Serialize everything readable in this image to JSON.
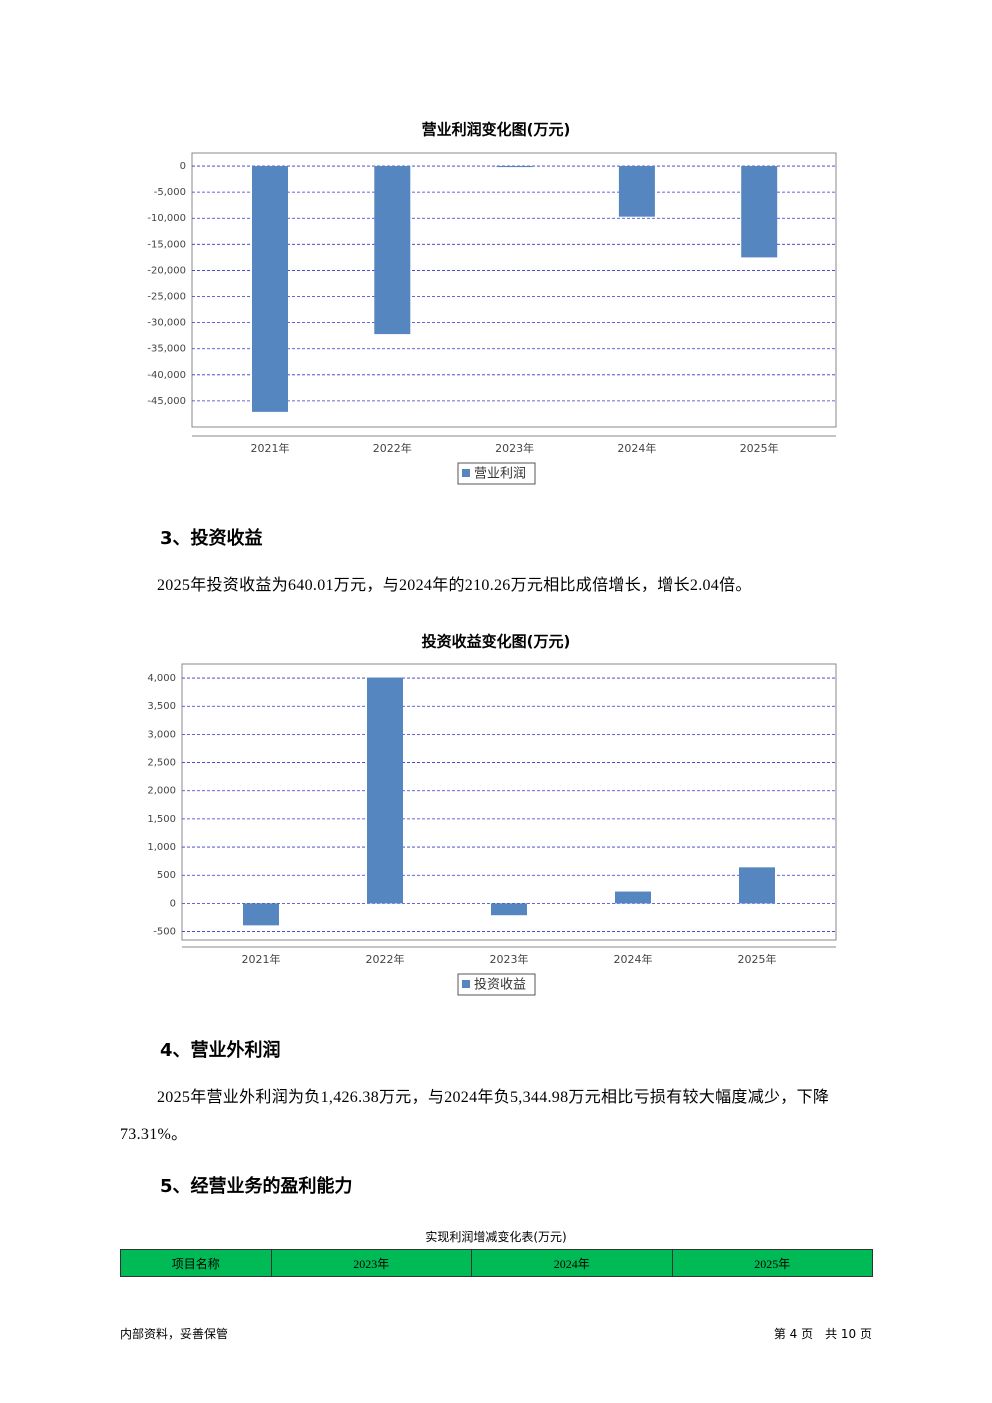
{
  "chart_data": [
    {
      "type": "bar",
      "title": "营业利润变化图(万元)",
      "categories": [
        "2021年",
        "2022年",
        "2023年",
        "2024年",
        "2025年"
      ],
      "series": [
        {
          "name": "营业利润",
          "color": "#5686bf",
          "values": [
            -47100,
            -32200,
            -200,
            -9700,
            -17500
          ]
        }
      ],
      "ylim": [
        -50000,
        2500
      ],
      "yticks": [
        0,
        {
          "value": -5000,
          "label": "-5,000"
        },
        {
          "value": -10000,
          "label": "-10,000"
        },
        {
          "value": -15000,
          "label": "-15,000"
        },
        {
          "value": -20000,
          "label": "-20,000"
        },
        {
          "value": -25000,
          "label": "-25,000"
        },
        {
          "value": -30000,
          "label": "-30,000"
        },
        {
          "value": -35000,
          "label": "-35,000"
        },
        {
          "value": -40000,
          "label": "-40,000"
        },
        {
          "value": -45000,
          "label": "-45,000"
        }
      ],
      "grid": true
    },
    {
      "type": "bar",
      "title": "投资收益变化图(万元)",
      "categories": [
        "2021年",
        "2022年",
        "2023年",
        "2024年",
        "2025年"
      ],
      "series": [
        {
          "name": "投资收益",
          "color": "#5686bf",
          "values": [
            -390,
            4010,
            -210,
            210.26,
            640.01
          ]
        }
      ],
      "ylim": [
        -650,
        4250
      ],
      "yticks": [
        {
          "value": 4000,
          "label": "4,000"
        },
        {
          "value": 3500,
          "label": "3,500"
        },
        {
          "value": 3000,
          "label": "3,000"
        },
        {
          "value": 2500,
          "label": "2,500"
        },
        {
          "value": 2000,
          "label": "2,000"
        },
        {
          "value": 1500,
          "label": "1,500"
        },
        {
          "value": 1000,
          "label": "1,000"
        },
        500,
        0,
        -500
      ],
      "grid": true
    }
  ],
  "sections": [
    {
      "heading": "3、投资收益",
      "text": "2025年投资收益为640.01万元，与2024年的210.26万元相比成倍增长，增长2.04倍。"
    },
    {
      "heading": "4、营业外利润",
      "text": "2025年营业外利润为负1,426.38万元，与2024年负5,344.98万元相比亏损有较大幅度减少，下降73.31%。"
    },
    {
      "heading": "5、经营业务的盈利能力"
    }
  ],
  "table": {
    "title": "实现利润增减变化表(万元)",
    "header": [
      "项目名称",
      "2023年",
      "2024年",
      "2025年"
    ]
  },
  "footer": {
    "left": "内部资料，妥善保管",
    "right": "第 4 页　共 10 页"
  }
}
